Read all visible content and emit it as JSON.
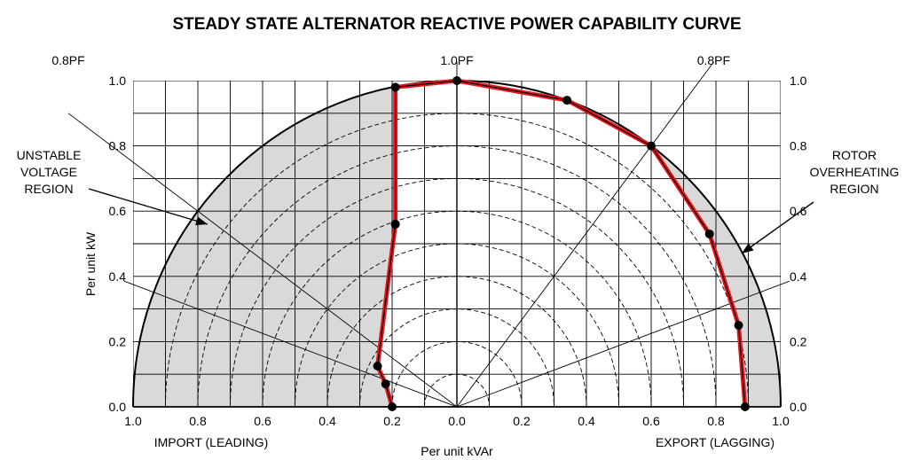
{
  "chart_data": {
    "type": "line",
    "title": "STEADY STATE ALTERNATOR REACTIVE POWER CAPABILITY CURVE",
    "xlabel": "Per unit kVAr",
    "ylabel": "Per unit kW",
    "x_left_label": "IMPORT (LEADING)",
    "x_right_label": "EXPORT (LAGGING)",
    "xlim": [
      -1.0,
      1.0
    ],
    "ylim": [
      0.0,
      1.0
    ],
    "x_tick_labels": [
      "1.0",
      "0.8",
      "0.6",
      "0.4",
      "0.2",
      "0.0",
      "0.2",
      "0.4",
      "0.6",
      "0.8",
      "1.0"
    ],
    "y_tick_labels": [
      "0.0",
      "0.2",
      "0.4",
      "0.6",
      "0.8",
      "1.0"
    ],
    "grid": true,
    "pf_lines": [
      {
        "label": "0.8PF",
        "angle_deg": 143.13
      },
      {
        "label": "1.0PF",
        "angle_deg": 90
      },
      {
        "label": "0.8PF",
        "angle_deg": 53.13
      },
      {
        "label": "",
        "angle_deg": 159.44
      },
      {
        "label": "",
        "angle_deg": 20.56
      }
    ],
    "concentric_radii": [
      0.1,
      0.2,
      0.3,
      0.4,
      0.5,
      0.6,
      0.7,
      0.8,
      0.9
    ],
    "outer_radius": 1.0,
    "series": [
      {
        "values_x": [
          -0.2,
          -0.22,
          -0.245,
          -0.19,
          -0.19,
          0.0,
          0.34,
          0.6,
          0.78,
          0.87,
          0.89
        ],
        "values_y": [
          0.0,
          0.07,
          0.125,
          0.56,
          0.98,
          1.0,
          0.94,
          0.8,
          0.53,
          0.25,
          0.0
        ]
      }
    ],
    "regions": [
      {
        "label": "UNSTABLE\nVOLTAGE\nREGION",
        "side": "left"
      },
      {
        "label": "ROTOR\nOVERHEATING\nREGION",
        "side": "right"
      }
    ],
    "colors": {
      "curve": "#e8181b",
      "region_fill": "#d9d9d9",
      "point": "#000000"
    }
  }
}
